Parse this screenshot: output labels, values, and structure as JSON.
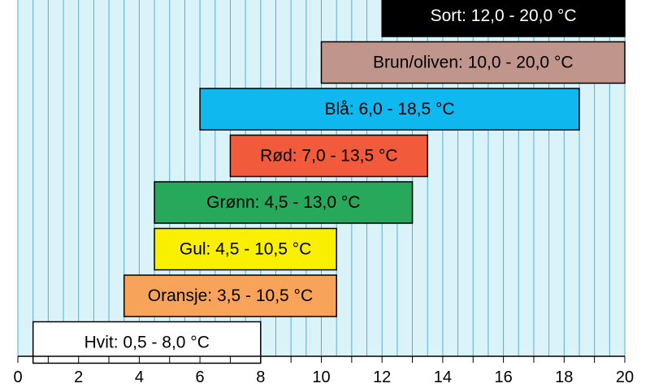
{
  "chart_data": {
    "type": "bar",
    "orientation": "horizontal-range",
    "title": "",
    "xlabel": "",
    "ylabel": "",
    "xlim": [
      0,
      20
    ],
    "xticks": [
      0,
      2,
      4,
      6,
      8,
      10,
      12,
      14,
      16,
      18,
      20
    ],
    "grid": "vertical",
    "background_color": "#d9f3f8",
    "grid_color": "#5aaed0",
    "bars": [
      {
        "label": "Sort: 12,0 - 20,0 °C",
        "start": 12.0,
        "end": 20.0,
        "color": "#000000",
        "text_color": "#ffffff"
      },
      {
        "label": "Brun/oliven: 10,0 - 20,0 °C",
        "start": 10.0,
        "end": 20.0,
        "color": "#c0958c",
        "text_color": "#000000"
      },
      {
        "label": "Blå: 6,0 - 18,5 °C",
        "start": 6.0,
        "end": 18.5,
        "color": "#10b8f0",
        "text_color": "#000000"
      },
      {
        "label": "Rød: 7,0 - 13,5 °C",
        "start": 7.0,
        "end": 13.5,
        "color": "#f25a3c",
        "text_color": "#000000"
      },
      {
        "label": "Grønn: 4,5 - 13,0 °C",
        "start": 4.5,
        "end": 13.0,
        "color": "#27a85a",
        "text_color": "#000000"
      },
      {
        "label": "Gul: 4,5 - 10,5 °C",
        "start": 4.5,
        "end": 10.5,
        "color": "#f8f000",
        "text_color": "#000000"
      },
      {
        "label": "Oransje: 3,5 - 10,5 °C",
        "start": 3.5,
        "end": 10.5,
        "color": "#f7a35a",
        "text_color": "#000000"
      },
      {
        "label": "Hvit: 0,5 - 8,0 °C",
        "start": 0.5,
        "end": 8.0,
        "color": "#ffffff",
        "text_color": "#000000"
      }
    ]
  }
}
